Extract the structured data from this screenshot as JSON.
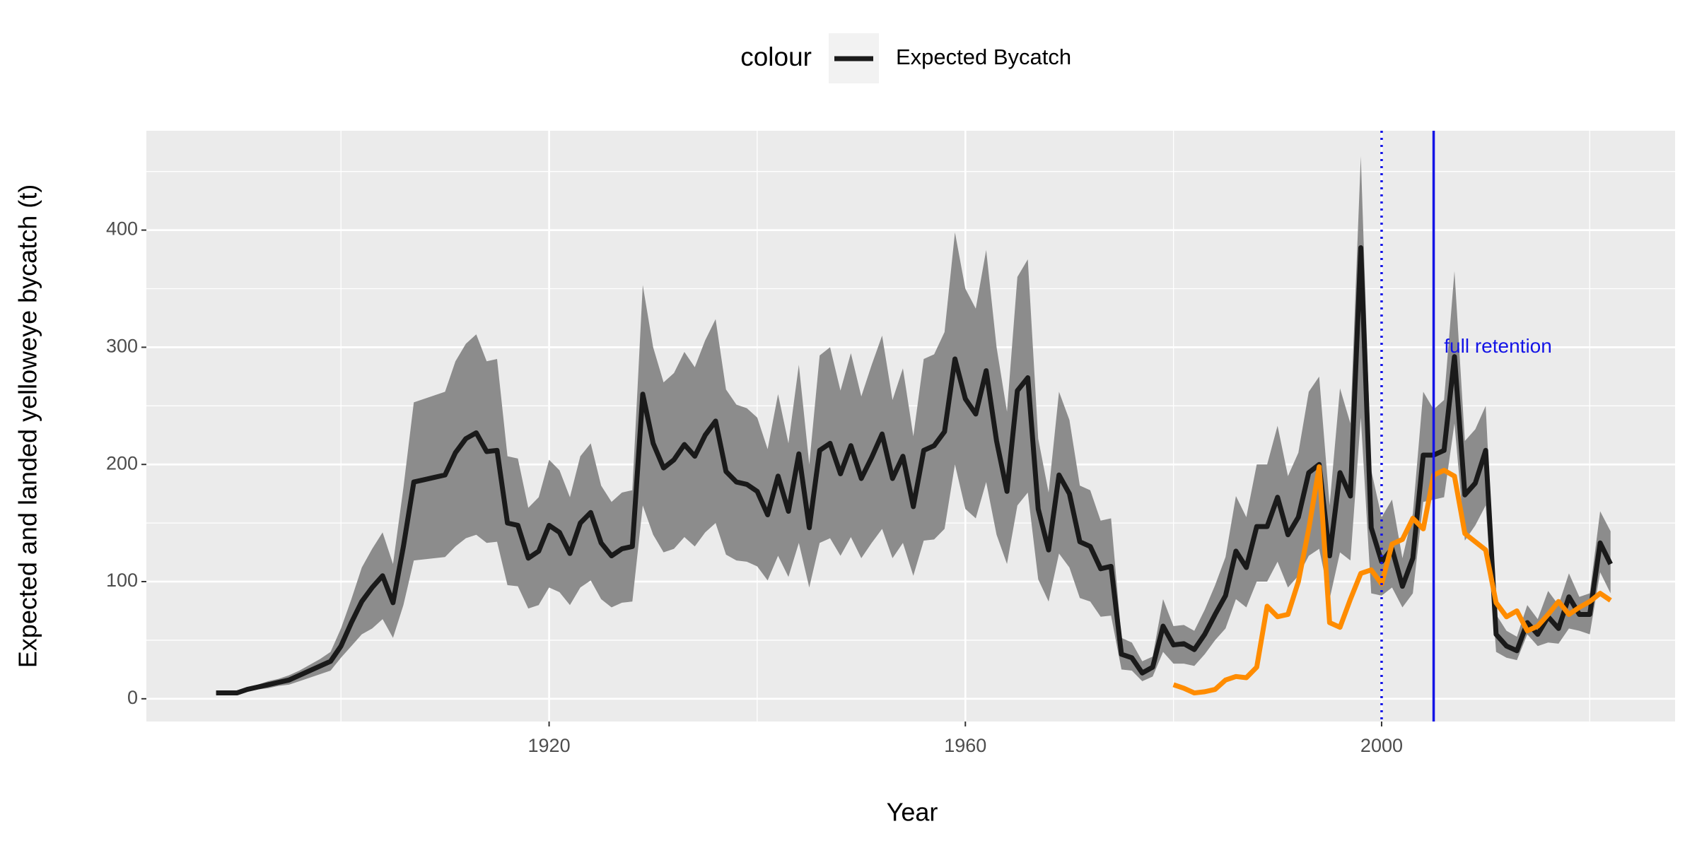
{
  "chart_data": {
    "type": "line",
    "x_label": "Year",
    "y_label": "Expected and landed yelloweye bycatch (t)",
    "legend_title": "colour",
    "legend_position": "top",
    "grid": true,
    "xlim": [
      1881.3,
      2028.2
    ],
    "ylim": [
      -19.4,
      484.8
    ],
    "xticks": [
      1920,
      1960,
      2000
    ],
    "xminor": [
      1900,
      1940,
      1980,
      2020
    ],
    "yticks": [
      0,
      100,
      200,
      300,
      400
    ],
    "yminor": [
      50,
      150,
      250,
      350,
      450
    ],
    "x": [
      1888,
      1889,
      1890,
      1891,
      1892,
      1893,
      1894,
      1895,
      1896,
      1897,
      1898,
      1899,
      1900,
      1901,
      1902,
      1903,
      1904,
      1905,
      1906,
      1907,
      1908,
      1909,
      1910,
      1911,
      1912,
      1913,
      1914,
      1915,
      1916,
      1917,
      1918,
      1919,
      1920,
      1921,
      1922,
      1923,
      1924,
      1925,
      1926,
      1927,
      1928,
      1929,
      1930,
      1931,
      1932,
      1933,
      1934,
      1935,
      1936,
      1937,
      1938,
      1939,
      1940,
      1941,
      1942,
      1943,
      1944,
      1945,
      1946,
      1947,
      1948,
      1949,
      1950,
      1951,
      1952,
      1953,
      1954,
      1955,
      1956,
      1957,
      1958,
      1959,
      1960,
      1961,
      1962,
      1963,
      1964,
      1965,
      1966,
      1967,
      1968,
      1969,
      1970,
      1971,
      1972,
      1973,
      1974,
      1975,
      1976,
      1977,
      1978,
      1979,
      1980,
      1981,
      1982,
      1983,
      1984,
      1985,
      1986,
      1987,
      1988,
      1989,
      1990,
      1991,
      1992,
      1993,
      1994,
      1995,
      1996,
      1997,
      1998,
      1999,
      2000,
      2001,
      2002,
      2003,
      2004,
      2005,
      2006,
      2007,
      2008,
      2009,
      2010,
      2011,
      2012,
      2013,
      2014,
      2015,
      2016,
      2017,
      2018,
      2019,
      2020,
      2021,
      2022
    ],
    "series": [
      {
        "name": "Expected Bycatch",
        "color": "#1a1a1a",
        "band_color": "#8c8c8c",
        "values": [
          5,
          5,
          5,
          8,
          10,
          12,
          14,
          16,
          20,
          24,
          28,
          32,
          45,
          65,
          83,
          95,
          105,
          82,
          130,
          185,
          187,
          189,
          191,
          210,
          222,
          227,
          211,
          212,
          150,
          148,
          120,
          126,
          148,
          142,
          124,
          150,
          159,
          133,
          122,
          128,
          130,
          260,
          218,
          197,
          204,
          217,
          207,
          225,
          237,
          194,
          185,
          183,
          177,
          157,
          190,
          160,
          209,
          146,
          212,
          218,
          192,
          216,
          188,
          206,
          226,
          188,
          207,
          164,
          212,
          216,
          228,
          290,
          256,
          243,
          280,
          220,
          177,
          263,
          274,
          162,
          127,
          191,
          175,
          134,
          130,
          111,
          113,
          38,
          35,
          22,
          27,
          62,
          46,
          47,
          42,
          55,
          72,
          88,
          126,
          112,
          147,
          147,
          172,
          140,
          155,
          193,
          200,
          122,
          193,
          173,
          385,
          146,
          117,
          128,
          96,
          120,
          208,
          208,
          212,
          292,
          174,
          184,
          212,
          55,
          45,
          41,
          65,
          55,
          70,
          60,
          87,
          72,
          72,
          133,
          115
        ],
        "lower": [
          4,
          4,
          4,
          6,
          8,
          9,
          11,
          12,
          15,
          18,
          21,
          24,
          35,
          45,
          55,
          60,
          68,
          52,
          80,
          118,
          119,
          120,
          121,
          130,
          137,
          140,
          133,
          134,
          97,
          96,
          77,
          80,
          95,
          91,
          80,
          95,
          101,
          85,
          78,
          82,
          83,
          165,
          140,
          125,
          128,
          138,
          130,
          142,
          150,
          123,
          118,
          117,
          113,
          101,
          122,
          104,
          133,
          95,
          133,
          137,
          122,
          138,
          120,
          133,
          145,
          120,
          133,
          105,
          135,
          136,
          145,
          200,
          162,
          154,
          185,
          140,
          115,
          165,
          176,
          102,
          83,
          124,
          112,
          86,
          83,
          70,
          71,
          25,
          24,
          15,
          19,
          40,
          30,
          30,
          28,
          38,
          50,
          60,
          85,
          78,
          100,
          100,
          117,
          95,
          105,
          122,
          128,
          85,
          125,
          118,
          240,
          90,
          88,
          95,
          78,
          90,
          168,
          170,
          172,
          235,
          135,
          148,
          165,
          40,
          35,
          33,
          55,
          45,
          48,
          47,
          60,
          58,
          55,
          108,
          90
        ],
        "upper": [
          6,
          6,
          7,
          10,
          12,
          15,
          17,
          20,
          24,
          29,
          34,
          40,
          60,
          85,
          112,
          128,
          142,
          115,
          180,
          253,
          256,
          259,
          262,
          288,
          303,
          311,
          288,
          290,
          207,
          205,
          163,
          172,
          204,
          195,
          172,
          207,
          218,
          182,
          168,
          176,
          178,
          353,
          300,
          270,
          278,
          296,
          283,
          306,
          324,
          264,
          251,
          248,
          240,
          213,
          260,
          218,
          285,
          200,
          293,
          300,
          263,
          295,
          258,
          285,
          310,
          255,
          282,
          224,
          290,
          294,
          313,
          398,
          350,
          333,
          383,
          300,
          245,
          360,
          375,
          222,
          176,
          262,
          238,
          182,
          178,
          152,
          154,
          52,
          48,
          32,
          36,
          85,
          62,
          63,
          58,
          76,
          97,
          121,
          173,
          155,
          200,
          200,
          233,
          190,
          210,
          262,
          275,
          165,
          265,
          235,
          463,
          195,
          155,
          170,
          120,
          158,
          262,
          247,
          255,
          365,
          220,
          230,
          250,
          72,
          58,
          53,
          80,
          68,
          92,
          80,
          107,
          87,
          90,
          160,
          143
        ]
      },
      {
        "color": "#ff8c00",
        "x": [
          1980,
          1981,
          1982,
          1983,
          1984,
          1985,
          1986,
          1987,
          1988,
          1989,
          1990,
          1991,
          1992,
          1993,
          1994,
          1995,
          1996,
          1997,
          1998,
          1999,
          2000,
          2001,
          2002,
          2003,
          2004,
          2005,
          2006,
          2007,
          2008,
          2009,
          2010,
          2011,
          2012,
          2013,
          2014,
          2015,
          2016,
          2017,
          2018,
          2019,
          2020,
          2021,
          2022
        ],
        "values": [
          12,
          9,
          5,
          6,
          8,
          16,
          19,
          18,
          27,
          79,
          70,
          72,
          100,
          145,
          198,
          65,
          61,
          85,
          107,
          110,
          98,
          132,
          136,
          154,
          145,
          191,
          195,
          190,
          141,
          134,
          127,
          82,
          70,
          75,
          58,
          62,
          72,
          83,
          72,
          78,
          83,
          90,
          84
        ]
      }
    ],
    "vlines": [
      {
        "x": 2000,
        "style": "dotted",
        "color": "#1414e6"
      },
      {
        "x": 2005,
        "style": "solid",
        "color": "#1414e6"
      }
    ],
    "annotations": [
      {
        "text": "full retention",
        "x": 2006,
        "y": 300,
        "color": "#1414e6"
      }
    ]
  }
}
